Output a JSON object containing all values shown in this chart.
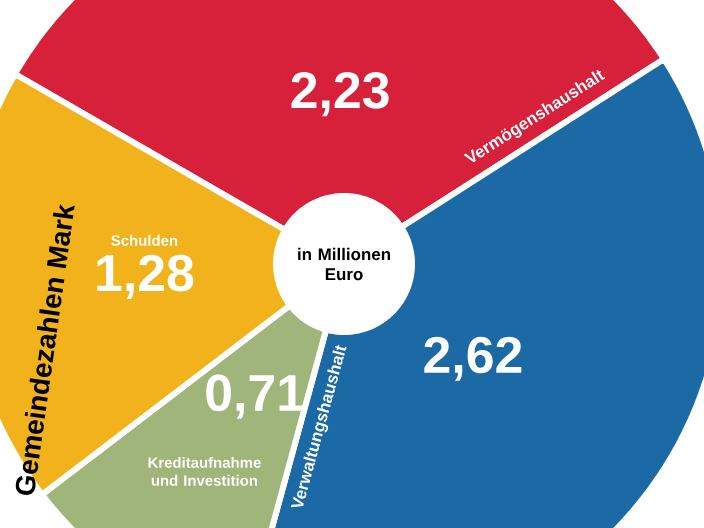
{
  "chart_data": {
    "type": "donut",
    "title": "Gemeindezahlen Mark",
    "categories": [
      "Vermögenshaushalt",
      "Verwaltungshaushalt",
      "Kreditaufnahme und Investition",
      "Schulden"
    ],
    "values": [
      2.23,
      2.62,
      0.71,
      1.28
    ],
    "value_labels": [
      "2,23",
      "2,62",
      "0,71",
      "1,28"
    ],
    "colors": [
      "#d7213a",
      "#1b6aa5",
      "#9fb57a",
      "#f2b21b"
    ],
    "annotations": [
      "in Millionen Euro"
    ]
  }
}
